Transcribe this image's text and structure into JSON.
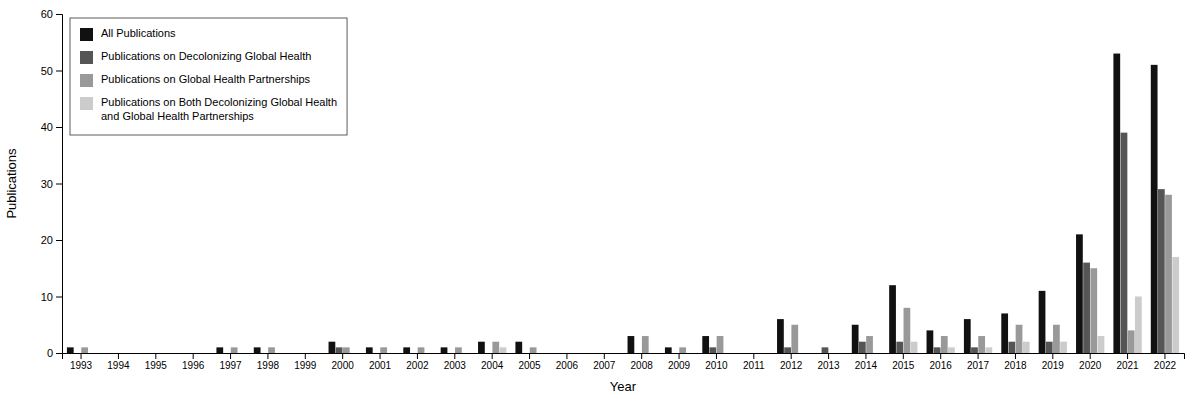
{
  "chart_data": {
    "type": "bar",
    "xlabel": "Year",
    "ylabel": "Publications",
    "categories": [
      "1993",
      "1994",
      "1995",
      "1996",
      "1997",
      "1998",
      "1999",
      "2000",
      "2001",
      "2002",
      "2003",
      "2004",
      "2005",
      "2006",
      "2007",
      "2008",
      "2009",
      "2010",
      "2011",
      "2012",
      "2013",
      "2014",
      "2015",
      "2016",
      "2017",
      "2018",
      "2019",
      "2020",
      "2021",
      "2022"
    ],
    "series": [
      {
        "name": "All Publications",
        "color": "#111111",
        "values": [
          1,
          0,
          0,
          0,
          1,
          1,
          0,
          2,
          1,
          1,
          1,
          2,
          2,
          0,
          0,
          3,
          1,
          3,
          0,
          6,
          0,
          5,
          12,
          4,
          6,
          7,
          11,
          21,
          53,
          51
        ]
      },
      {
        "name": "Publications on Decolonizing Global Health",
        "color": "#555555",
        "values": [
          0,
          0,
          0,
          0,
          0,
          0,
          0,
          1,
          0,
          0,
          0,
          0,
          0,
          0,
          0,
          0,
          0,
          1,
          0,
          1,
          1,
          2,
          2,
          1,
          1,
          2,
          2,
          16,
          39,
          29
        ]
      },
      {
        "name": "Publications on Global Health Partnerships",
        "color": "#999999",
        "values": [
          1,
          0,
          0,
          0,
          1,
          1,
          0,
          1,
          1,
          1,
          1,
          2,
          1,
          0,
          0,
          3,
          1,
          3,
          0,
          5,
          0,
          3,
          8,
          3,
          3,
          5,
          5,
          15,
          4,
          28
        ]
      },
      {
        "name": "Publications on Both Decolonizing Global Health\nand Global Health Partnerships",
        "color": "#cccccc",
        "values": [
          0,
          0,
          0,
          0,
          0,
          0,
          0,
          0,
          0,
          0,
          0,
          1,
          0,
          0,
          0,
          0,
          0,
          0,
          0,
          0,
          0,
          0,
          2,
          1,
          1,
          2,
          2,
          3,
          10,
          17
        ]
      }
    ],
    "ylim": [
      0,
      60
    ],
    "yticks": [
      0,
      10,
      20,
      30,
      40,
      50,
      60
    ],
    "grid": false,
    "legend": "upper left"
  }
}
